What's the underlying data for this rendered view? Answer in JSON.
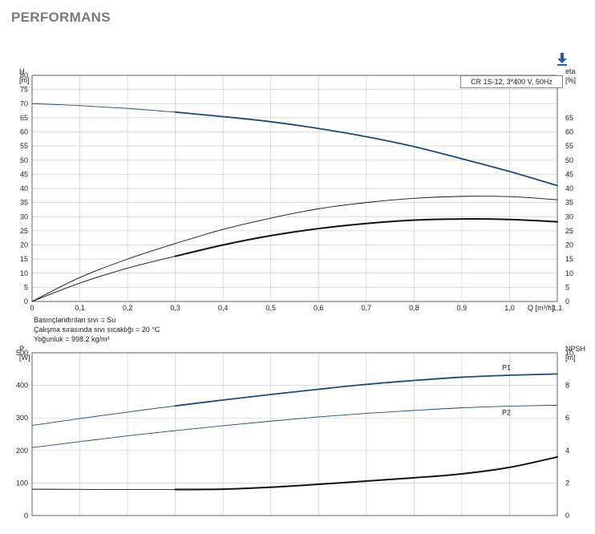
{
  "page": {
    "title": "PERFORMANS"
  },
  "toolbar": {
    "download_icon": "download-icon"
  },
  "notes": {
    "liquid": "Basınçlandırılan sıvı = Su",
    "temperature": "Çalışma sırasında sıvı sıcaklığı = 20 °C",
    "density": "Yoğunluk = 998.2 kg/m³"
  },
  "chart_data": [
    {
      "type": "line",
      "legend": "CR 1S-12, 3*400 V, 50Hz",
      "xlabel": "Q [m³/h]",
      "ylabel_left": [
        "H",
        "[m]"
      ],
      "ylabel_right": [
        "eta",
        "[%]"
      ],
      "xlim": [
        0,
        1.1
      ],
      "ylim_left": [
        0,
        80
      ],
      "ylim_right": [
        0,
        80
      ],
      "grid": true,
      "x_ticks": [
        "0",
        "0,1",
        "0,2",
        "0,3",
        "0,4",
        "0,5",
        "0,6",
        "0,7",
        "0,8",
        "0,9",
        "1,0",
        "1,1"
      ],
      "y_ticks_left": [
        "0",
        "5",
        "10",
        "15",
        "20",
        "25",
        "30",
        "35",
        "40",
        "45",
        "50",
        "55",
        "60",
        "65",
        "70",
        "75",
        "80"
      ],
      "y_ticks_right": [
        "0",
        "5",
        "10",
        "15",
        "20",
        "25",
        "30",
        "35",
        "40",
        "45",
        "50",
        "55",
        "60",
        "65"
      ],
      "series": [
        {
          "id": "H-thin",
          "axis": "left",
          "color": "#1c4a7a",
          "width": 0.9,
          "x": [
            0,
            0.1,
            0.2,
            0.3
          ],
          "y": [
            70,
            69.3,
            68.3,
            67
          ]
        },
        {
          "id": "H",
          "axis": "left",
          "color": "#1c4a7a",
          "width": 1.8,
          "x": [
            0.3,
            0.4,
            0.5,
            0.6,
            0.7,
            0.8,
            0.9,
            1.0,
            1.1
          ],
          "y": [
            67,
            65.4,
            63.6,
            61.2,
            58.3,
            54.8,
            50.5,
            46,
            41
          ]
        },
        {
          "id": "eta-thin",
          "axis": "right",
          "color": "#111111",
          "width": 0.9,
          "x": [
            0,
            0.1,
            0.2,
            0.3,
            0.4,
            0.5,
            0.6,
            0.7,
            0.8,
            0.9,
            1.0,
            1.1
          ],
          "y": [
            0,
            8.5,
            15,
            20.5,
            25.5,
            29.5,
            32.8,
            35,
            36.5,
            37.2,
            37.1,
            36
          ]
        },
        {
          "id": "eta-low-thin",
          "axis": "right",
          "color": "#111111",
          "width": 0.9,
          "x": [
            0,
            0.1,
            0.2,
            0.3
          ],
          "y": [
            0,
            6.5,
            11.8,
            16
          ]
        },
        {
          "id": "eta",
          "axis": "right",
          "color": "#111111",
          "width": 2,
          "x": [
            0.3,
            0.4,
            0.5,
            0.6,
            0.7,
            0.8,
            0.9,
            1.0,
            1.1
          ],
          "y": [
            16,
            20,
            23.3,
            25.8,
            27.6,
            28.8,
            29.2,
            29,
            28.2
          ]
        }
      ]
    },
    {
      "type": "line",
      "ylabel_left": [
        "P",
        "[W]"
      ],
      "ylabel_right": [
        "NPSH",
        "[m]"
      ],
      "xlim": [
        0,
        1.1
      ],
      "ylim_left": [
        0,
        500
      ],
      "ylim_right": [
        0,
        10
      ],
      "grid": true,
      "y_ticks_left": [
        "0",
        "100",
        "200",
        "300",
        "400",
        "500"
      ],
      "y_ticks_right": [
        "0",
        "2",
        "4",
        "6",
        "8",
        "10"
      ],
      "series": [
        {
          "id": "P1-thin",
          "name": "P1",
          "axis": "left",
          "color": "#1c4a7a",
          "width": 0.9,
          "x": [
            0,
            0.1,
            0.2,
            0.3
          ],
          "y": [
            277,
            298,
            318,
            337
          ]
        },
        {
          "id": "P1",
          "name": "P1",
          "axis": "left",
          "color": "#1c4a7a",
          "width": 1.8,
          "x": [
            0.3,
            0.4,
            0.5,
            0.6,
            0.7,
            0.8,
            0.9,
            1.0,
            1.1
          ],
          "y": [
            337,
            355,
            372,
            388,
            403,
            415,
            425,
            431,
            435
          ]
        },
        {
          "id": "P2",
          "name": "P2",
          "axis": "left",
          "color": "#1c4a7a",
          "width": 0.9,
          "x": [
            0,
            0.1,
            0.2,
            0.3,
            0.4,
            0.5,
            0.6,
            0.7,
            0.8,
            0.9,
            1.0,
            1.1
          ],
          "y": [
            209,
            227,
            245,
            261,
            276,
            290,
            303,
            314,
            323,
            331,
            336,
            339
          ]
        },
        {
          "id": "NPSH-thin",
          "axis": "right",
          "color": "#111111",
          "width": 0.9,
          "x": [
            0,
            0.1,
            0.2,
            0.3
          ],
          "y": [
            1.62,
            1.61,
            1.6,
            1.6
          ]
        },
        {
          "id": "NPSH",
          "axis": "right",
          "color": "#111111",
          "width": 2,
          "x": [
            0.3,
            0.4,
            0.5,
            0.6,
            0.7,
            0.8,
            0.9,
            1.0,
            1.1
          ],
          "y": [
            1.6,
            1.62,
            1.74,
            1.92,
            2.12,
            2.32,
            2.56,
            2.96,
            3.6
          ]
        }
      ]
    }
  ]
}
